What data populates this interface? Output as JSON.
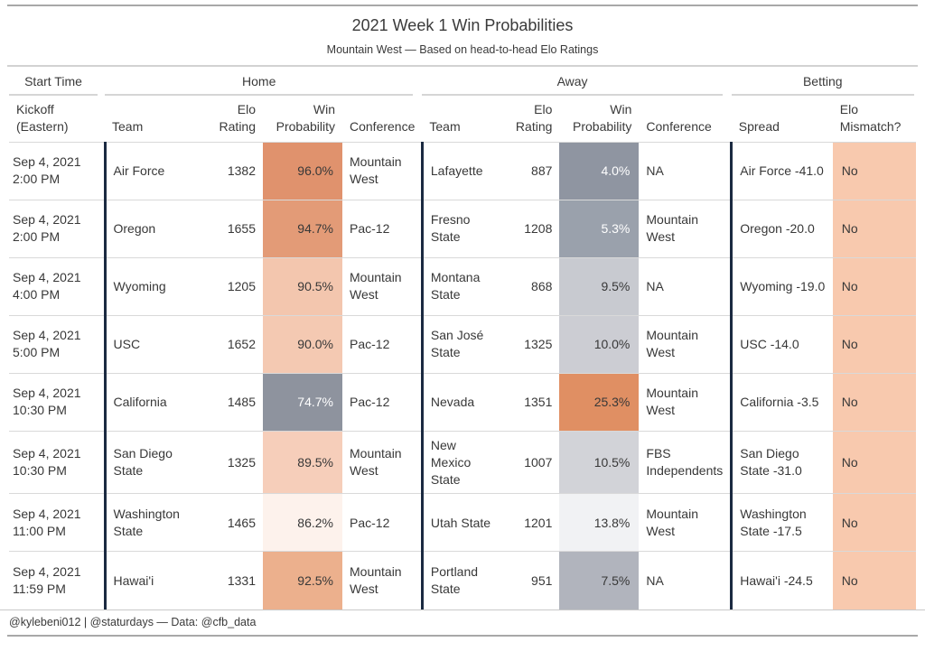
{
  "title": "2021 Week 1 Win Probabilities",
  "subtitle": "Mountain West — Based on head-to-head Elo Ratings",
  "footer_credit": "@kylebeni012 | @staturdays — Data: @cfb_data",
  "groups": {
    "start_time": "Start Time",
    "home": "Home",
    "away": "Away",
    "betting": "Betting"
  },
  "column_headers": {
    "kickoff": "Kickoff\n(Eastern)",
    "team": "Team",
    "elo_rating": "Elo\nRating",
    "win_probability": "Win\nProbability",
    "conference": "Conference",
    "spread": "Spread",
    "elo_mismatch": "Elo\nMismatch?"
  },
  "colors": {
    "divider_navy": "#1b2a41",
    "mismatch_cell_bg": "#f8c9ae",
    "prob_orange_high": "#e0926d",
    "prob_gray_low": "#8f95a1",
    "row_divider": "#d9d9d9"
  },
  "rows": [
    {
      "kickoff": "Sep 4, 2021\n2:00 PM",
      "home_team": "Air Force",
      "home_elo": "1382",
      "home_prob": "96.0%",
      "home_prob_bg": "#e0926d",
      "home_prob_fg": "#383838",
      "home_conf": "Mountain West",
      "away_team": "Lafayette",
      "away_elo": "887",
      "away_prob": "4.0%",
      "away_prob_bg": "#8f95a1",
      "away_prob_fg": "#ffffff",
      "away_conf": "NA",
      "spread": "Air Force -41.0",
      "mismatch": "No"
    },
    {
      "kickoff": "Sep 4, 2021\n2:00 PM",
      "home_team": "Oregon",
      "home_elo": "1655",
      "home_prob": "94.7%",
      "home_prob_bg": "#e39b77",
      "home_prob_fg": "#383838",
      "home_conf": "Pac-12",
      "away_team": "Fresno State",
      "away_elo": "1208",
      "away_prob": "5.3%",
      "away_prob_bg": "#9aa1ac",
      "away_prob_fg": "#ffffff",
      "away_conf": "Mountain West",
      "spread": "Oregon -20.0",
      "mismatch": "No"
    },
    {
      "kickoff": "Sep 4, 2021\n4:00 PM",
      "home_team": "Wyoming",
      "home_elo": "1205",
      "home_prob": "90.5%",
      "home_prob_bg": "#f3c6ae",
      "home_prob_fg": "#383838",
      "home_conf": "Mountain West",
      "away_team": "Montana State",
      "away_elo": "868",
      "away_prob": "9.5%",
      "away_prob_bg": "#c8cad0",
      "away_prob_fg": "#383838",
      "away_conf": "NA",
      "spread": "Wyoming -19.0",
      "mismatch": "No"
    },
    {
      "kickoff": "Sep 4, 2021\n5:00 PM",
      "home_team": "USC",
      "home_elo": "1652",
      "home_prob": "90.0%",
      "home_prob_bg": "#f4c9b2",
      "home_prob_fg": "#383838",
      "home_conf": "Pac-12",
      "away_team": "San José State",
      "away_elo": "1325",
      "away_prob": "10.0%",
      "away_prob_bg": "#cccdd3",
      "away_prob_fg": "#383838",
      "away_conf": "Mountain West",
      "spread": "USC -14.0",
      "mismatch": "No"
    },
    {
      "kickoff": "Sep 4, 2021\n10:30 PM",
      "home_team": "California",
      "home_elo": "1485",
      "home_prob": "74.7%",
      "home_prob_bg": "#8e939e",
      "home_prob_fg": "#ffffff",
      "home_conf": "Pac-12",
      "away_team": "Nevada",
      "away_elo": "1351",
      "away_prob": "25.3%",
      "away_prob_bg": "#e08f63",
      "away_prob_fg": "#383838",
      "away_conf": "Mountain West",
      "spread": "California -3.5",
      "mismatch": "No"
    },
    {
      "kickoff": "Sep 4, 2021\n10:30 PM",
      "home_team": "San Diego State",
      "home_elo": "1325",
      "home_prob": "89.5%",
      "home_prob_bg": "#f6ceba",
      "home_prob_fg": "#383838",
      "home_conf": "Mountain West",
      "away_team": "New Mexico State",
      "away_elo": "1007",
      "away_prob": "10.5%",
      "away_prob_bg": "#d2d3d8",
      "away_prob_fg": "#383838",
      "away_conf": "FBS Independents",
      "spread": "San Diego State -31.0",
      "mismatch": "No"
    },
    {
      "kickoff": "Sep 4, 2021\n11:00 PM",
      "home_team": "Washington State",
      "home_elo": "1465",
      "home_prob": "86.2%",
      "home_prob_bg": "#fdf2ec",
      "home_prob_fg": "#383838",
      "home_conf": "Pac-12",
      "away_team": "Utah State",
      "away_elo": "1201",
      "away_prob": "13.8%",
      "away_prob_bg": "#f1f2f4",
      "away_prob_fg": "#383838",
      "away_conf": "Mountain West",
      "spread": "Washington State -17.5",
      "mismatch": "No"
    },
    {
      "kickoff": "Sep 4, 2021\n11:59 PM",
      "home_team": "Hawai'i",
      "home_elo": "1331",
      "home_prob": "92.5%",
      "home_prob_bg": "#ecb08d",
      "home_prob_fg": "#383838",
      "home_conf": "Mountain West",
      "away_team": "Portland State",
      "away_elo": "951",
      "away_prob": "7.5%",
      "away_prob_bg": "#b1b4bd",
      "away_prob_fg": "#383838",
      "away_conf": "NA",
      "spread": "Hawai'i -24.5",
      "mismatch": "No"
    }
  ]
}
